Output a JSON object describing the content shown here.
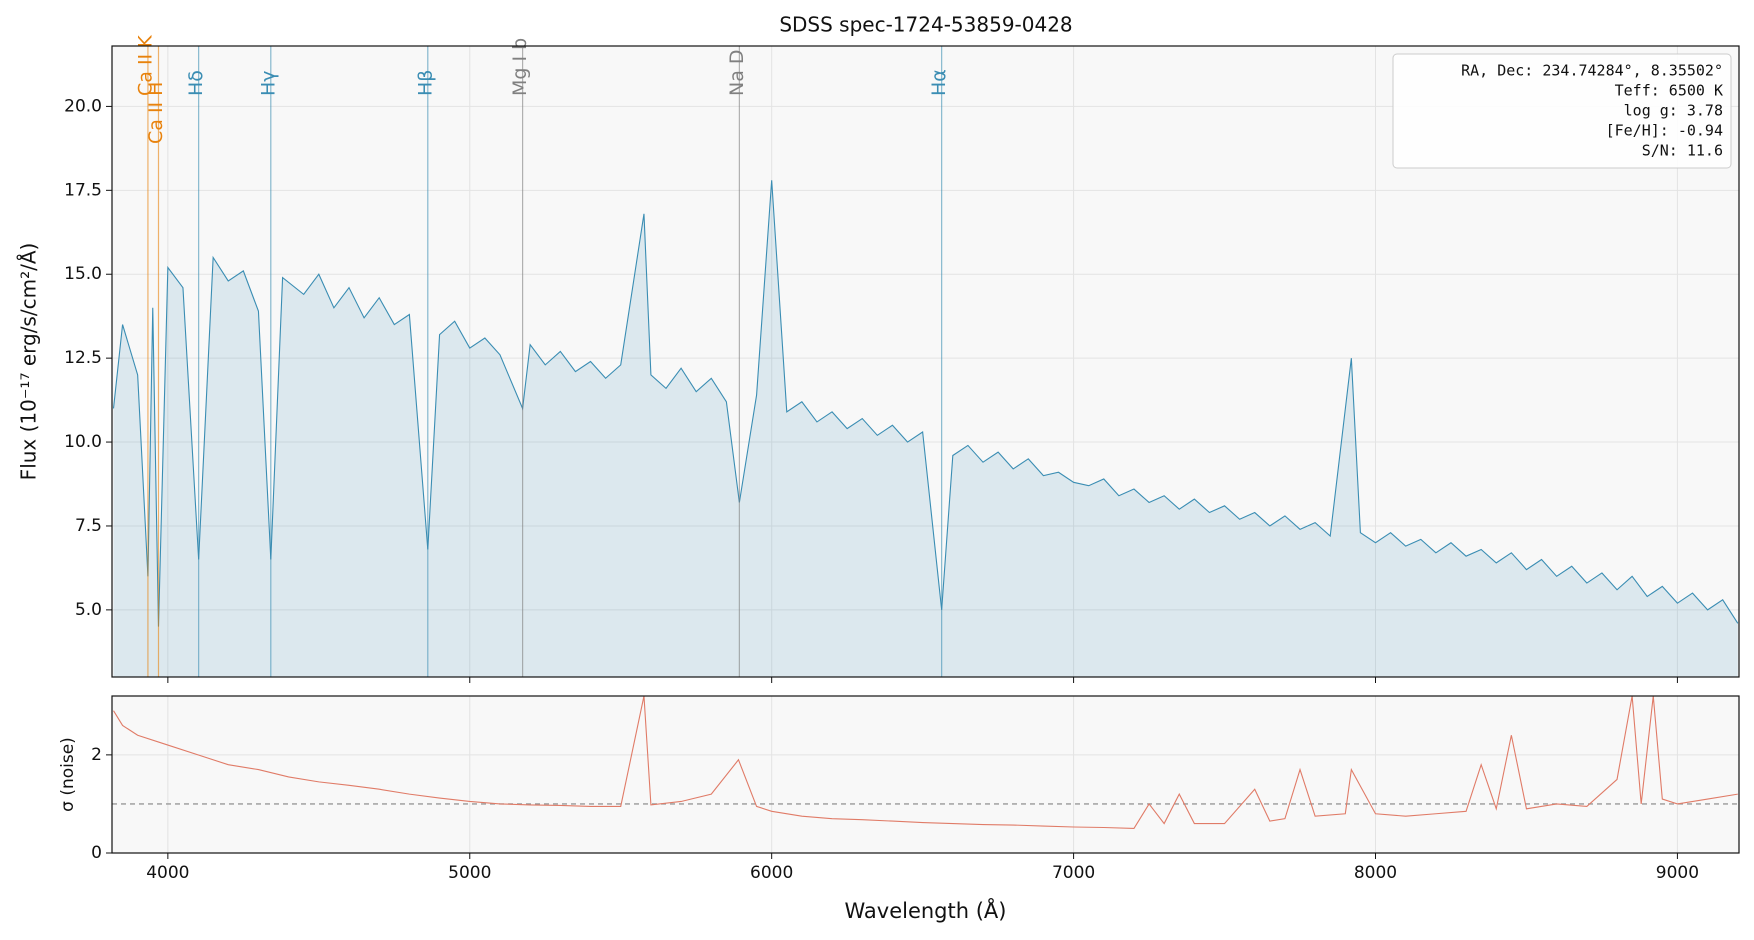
{
  "chart_data": [
    {
      "type": "line",
      "title": "SDSS spec-1724-53859-0428",
      "ylabel": "Flux (10⁻¹⁷ erg/s/cm²/Å)",
      "xlim": [
        3815,
        9204
      ],
      "ylim": [
        3.0,
        21.8
      ],
      "yticks": [
        {
          "value": 5,
          "label": "5.0"
        },
        7.5,
        {
          "value": 10,
          "label": "10.0"
        },
        12.5,
        {
          "value": 15,
          "label": "15.0"
        },
        17.5,
        {
          "value": 20,
          "label": "20.0"
        }
      ],
      "grid": true,
      "fill": true,
      "x": [
        3820,
        3850,
        3900,
        3934,
        3950,
        3969,
        4000,
        4050,
        4102,
        4150,
        4200,
        4250,
        4300,
        4341,
        4380,
        4450,
        4500,
        4550,
        4600,
        4650,
        4700,
        4750,
        4800,
        4861,
        4900,
        4950,
        5000,
        5050,
        5100,
        5175,
        5200,
        5250,
        5300,
        5350,
        5400,
        5450,
        5500,
        5577,
        5600,
        5650,
        5700,
        5750,
        5800,
        5850,
        5893,
        5950,
        6000,
        6050,
        6100,
        6150,
        6200,
        6250,
        6300,
        6350,
        6400,
        6450,
        6500,
        6563,
        6600,
        6650,
        6700,
        6750,
        6800,
        6850,
        6900,
        6950,
        7000,
        7050,
        7100,
        7150,
        7200,
        7250,
        7300,
        7350,
        7400,
        7450,
        7500,
        7550,
        7600,
        7650,
        7700,
        7750,
        7800,
        7850,
        7920,
        7950,
        8000,
        8050,
        8100,
        8150,
        8200,
        8250,
        8300,
        8350,
        8400,
        8450,
        8500,
        8550,
        8600,
        8650,
        8700,
        8750,
        8800,
        8850,
        8900,
        8950,
        9000,
        9050,
        9100,
        9150,
        9200
      ],
      "series": [
        {
          "name": "Flux",
          "color": "#3a8db3",
          "values": [
            11.0,
            13.5,
            12.0,
            6.0,
            14.0,
            4.5,
            15.2,
            14.6,
            6.5,
            15.5,
            14.8,
            15.1,
            13.9,
            6.5,
            14.9,
            14.4,
            15.0,
            14.0,
            14.6,
            13.7,
            14.3,
            13.5,
            13.8,
            6.8,
            13.2,
            13.6,
            12.8,
            13.1,
            12.6,
            11.0,
            12.9,
            12.3,
            12.7,
            12.1,
            12.4,
            11.9,
            12.3,
            16.8,
            12.0,
            11.6,
            12.2,
            11.5,
            11.9,
            11.2,
            8.2,
            11.4,
            17.8,
            10.9,
            11.2,
            10.6,
            10.9,
            10.4,
            10.7,
            10.2,
            10.5,
            10.0,
            10.3,
            5.0,
            9.6,
            9.9,
            9.4,
            9.7,
            9.2,
            9.5,
            9.0,
            9.1,
            8.8,
            8.7,
            8.9,
            8.4,
            8.6,
            8.2,
            8.4,
            8.0,
            8.3,
            7.9,
            8.1,
            7.7,
            7.9,
            7.5,
            7.8,
            7.4,
            7.6,
            7.2,
            12.5,
            7.3,
            7.0,
            7.3,
            6.9,
            7.1,
            6.7,
            7.0,
            6.6,
            6.8,
            6.4,
            6.7,
            6.2,
            6.5,
            6.0,
            6.3,
            5.8,
            6.1,
            5.6,
            6.0,
            5.4,
            5.7,
            5.2,
            5.5,
            5.0,
            5.3,
            4.6
          ]
        }
      ],
      "lines": [
        {
          "label": "Ca II K",
          "wavelength": 3934,
          "color": "#e8820c"
        },
        {
          "label": "Ca II H",
          "wavelength": 3969,
          "color": "#e8820c"
        },
        {
          "label": "Hδ",
          "wavelength": 4102,
          "color": "#3a8db3"
        },
        {
          "label": "Hγ",
          "wavelength": 4341,
          "color": "#3a8db3"
        },
        {
          "label": "Hβ",
          "wavelength": 4861,
          "color": "#3a8db3"
        },
        {
          "label": "Mg I b",
          "wavelength": 5175,
          "color": "#808080"
        },
        {
          "label": "Na D",
          "wavelength": 5893,
          "color": "#808080"
        },
        {
          "label": "Hα",
          "wavelength": 6563,
          "color": "#3a8db3"
        }
      ],
      "info": [
        "RA, Dec: 234.74284°, 8.35502°",
        "Teff: 6500 K",
        "log g: 3.78",
        "[Fe/H]: -0.94",
        "S/N: 11.6"
      ]
    },
    {
      "type": "line",
      "ylabel": "σ (noise)",
      "xlabel": "Wavelength (Å)",
      "xlim": [
        3815,
        9204
      ],
      "ylim": [
        0,
        3.2
      ],
      "yticks": [
        0,
        2
      ],
      "xticks": [
        4000,
        5000,
        6000,
        7000,
        8000,
        9000
      ],
      "grid": true,
      "fill": false,
      "hline": 1,
      "x": [
        3820,
        3850,
        3900,
        4000,
        4100,
        4200,
        4300,
        4400,
        4500,
        4600,
        4700,
        4800,
        4900,
        5000,
        5100,
        5200,
        5300,
        5400,
        5500,
        5577,
        5600,
        5700,
        5800,
        5890,
        5950,
        6000,
        6100,
        6200,
        6300,
        6400,
        6500,
        6600,
        6700,
        6800,
        6900,
        7000,
        7100,
        7200,
        7250,
        7300,
        7350,
        7400,
        7500,
        7600,
        7650,
        7700,
        7750,
        7800,
        7900,
        7920,
        8000,
        8100,
        8200,
        8300,
        8350,
        8400,
        8450,
        8500,
        8600,
        8700,
        8800,
        8850,
        8880,
        8920,
        8950,
        9000,
        9100,
        9200
      ],
      "series": [
        {
          "name": "σ",
          "color": "#e07b67",
          "values": [
            2.9,
            2.6,
            2.4,
            2.2,
            2.0,
            1.8,
            1.7,
            1.55,
            1.45,
            1.38,
            1.3,
            1.2,
            1.12,
            1.05,
            1.0,
            0.98,
            0.97,
            0.95,
            0.95,
            3.2,
            0.98,
            1.05,
            1.2,
            1.9,
            0.95,
            0.85,
            0.75,
            0.7,
            0.68,
            0.65,
            0.62,
            0.6,
            0.58,
            0.57,
            0.55,
            0.53,
            0.52,
            0.5,
            1.0,
            0.6,
            1.2,
            0.6,
            0.6,
            1.3,
            0.65,
            0.7,
            1.7,
            0.75,
            0.8,
            1.7,
            0.8,
            0.75,
            0.8,
            0.85,
            1.8,
            0.9,
            2.4,
            0.9,
            1.0,
            0.95,
            1.5,
            3.2,
            1.0,
            3.2,
            1.1,
            1.0,
            1.1,
            1.2
          ]
        }
      ]
    }
  ]
}
